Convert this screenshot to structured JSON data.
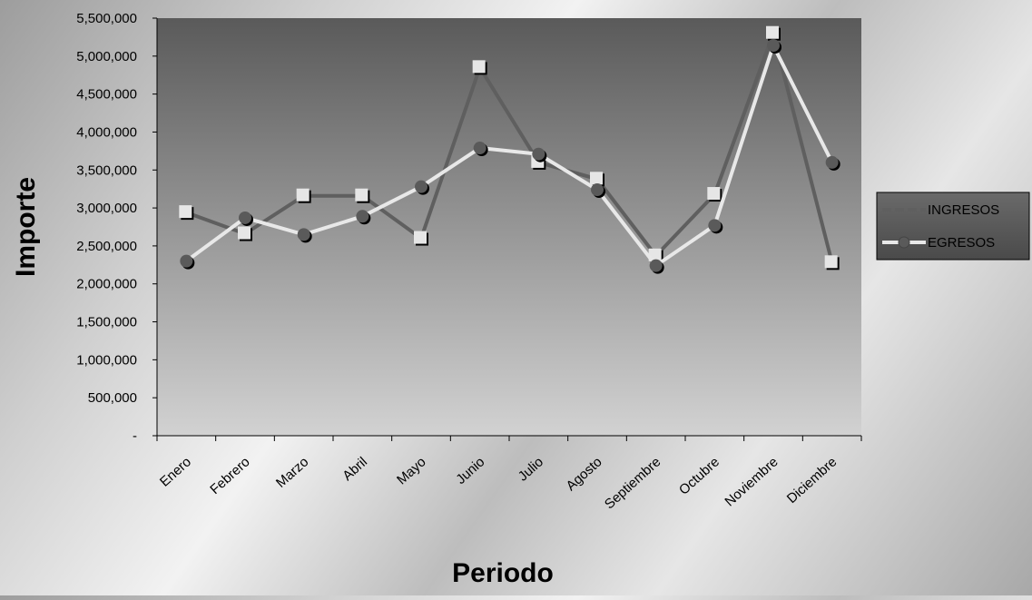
{
  "chart_data": {
    "type": "line",
    "title": "",
    "xlabel": "Periodo",
    "ylabel": "Importe",
    "categories": [
      "Enero",
      "Febrero",
      "Marzo",
      "Abril",
      "Mayo",
      "Junio",
      "Julio",
      "Agosto",
      "Septiembre",
      "Octubre",
      "Noviembre",
      "Diciembre"
    ],
    "series": [
      {
        "name": "INGRESOS",
        "marker": "square",
        "line_color": "#5f5f5f",
        "marker_color": "#e6e6e6",
        "values": [
          2940000,
          2660000,
          3160000,
          3160000,
          2600000,
          4850000,
          3600000,
          3380000,
          2370000,
          3180000,
          5300000,
          2280000
        ]
      },
      {
        "name": "EGRESOS",
        "marker": "circle",
        "line_color": "#e8e8e8",
        "marker_color": "#5a5a5a",
        "values": [
          2300000,
          2870000,
          2650000,
          2890000,
          3280000,
          3790000,
          3710000,
          3240000,
          2240000,
          2770000,
          5140000,
          3600000
        ]
      }
    ],
    "ylim": [
      0,
      5500000
    ],
    "yticks": [
      0,
      500000,
      1000000,
      1500000,
      2000000,
      2500000,
      3000000,
      3500000,
      4000000,
      4500000,
      5000000,
      5500000
    ],
    "ytick_labels": [
      "-",
      "500,000",
      "1,000,000",
      "1,500,000",
      "2,000,000",
      "2,500,000",
      "3,000,000",
      "3,500,000",
      "4,000,000",
      "4,500,000",
      "5,000,000",
      "5,500,000"
    ],
    "grid": false,
    "legend_position": "right",
    "plot_background": [
      "#5a5a5a",
      "#d2d2d2"
    ]
  }
}
